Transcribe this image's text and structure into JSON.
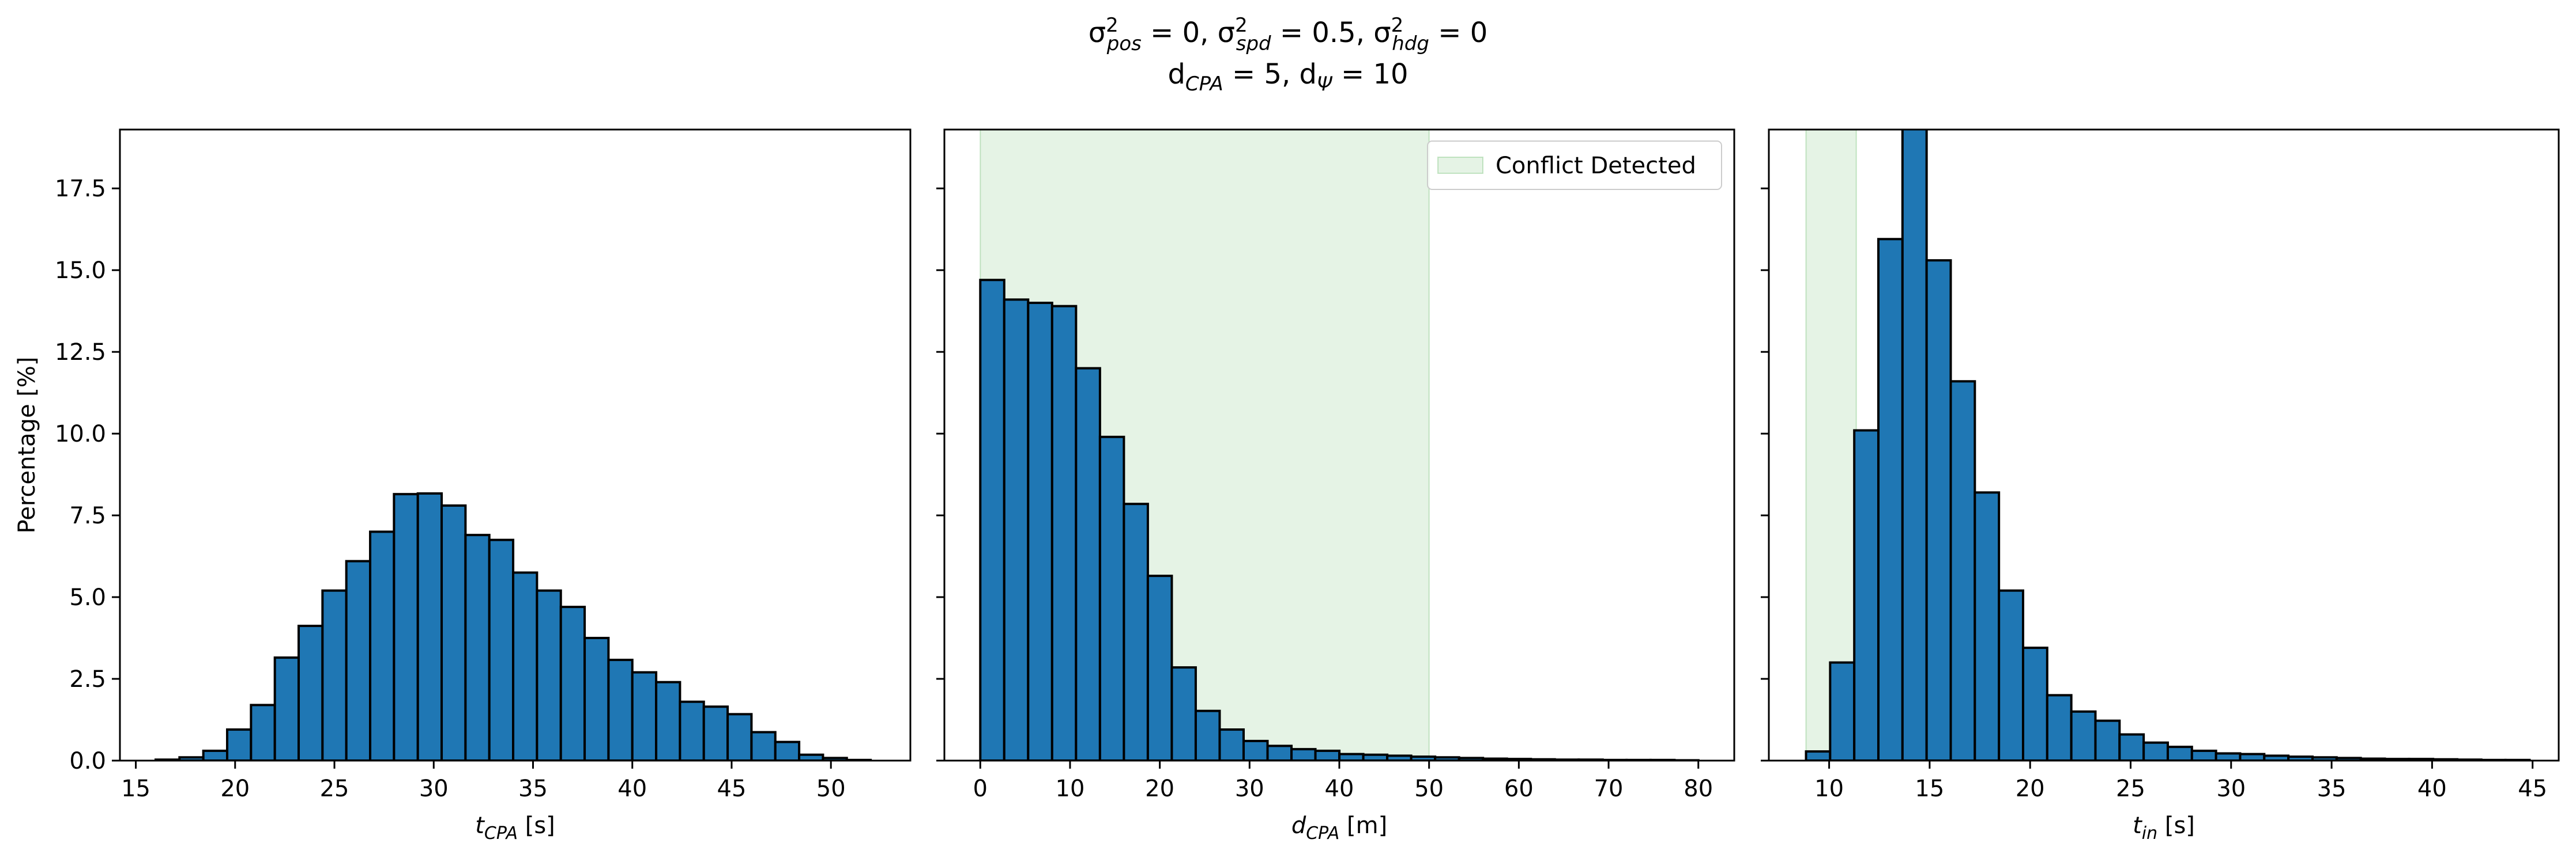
{
  "suptitle": {
    "line1": {
      "parts": [
        {
          "t": "σ"
        },
        {
          "sup": "2",
          "sub": "pos"
        },
        {
          "t": " = 0, σ"
        },
        {
          "sup": "2",
          "sub": "spd"
        },
        {
          "t": " = 0.5, σ"
        },
        {
          "sup": "2",
          "sub": "hdg"
        },
        {
          "t": " = 0"
        }
      ]
    },
    "line2": {
      "parts": [
        {
          "t": "d"
        },
        {
          "sub": "CPA"
        },
        {
          "t": " = 5, d"
        },
        {
          "sub": "Ψ"
        },
        {
          "t": " = 10"
        }
      ]
    }
  },
  "colors": {
    "bar": "#1f77b4",
    "edge": "#000000",
    "shade": "#2ca02c"
  },
  "chart_data": [
    {
      "type": "bar",
      "name": "tcpa",
      "ylabel": "Percentage [%]",
      "xlabel": {
        "main": "t",
        "sub": "CPA",
        "unit": " [s]"
      },
      "xlim": [
        14.2,
        54.0
      ],
      "ylim": [
        0,
        19.3
      ],
      "xticks": [
        15,
        20,
        25,
        30,
        35,
        40,
        45,
        50
      ],
      "yticks": [
        0,
        2.5,
        5,
        7.5,
        10,
        12.5,
        15,
        17.5
      ],
      "ytick_labels": [
        "0.0",
        "2.5",
        "5.0",
        "7.5",
        "10.0",
        "12.5",
        "15.0",
        "17.5"
      ],
      "show_ytick_labels": true,
      "bin_start": 16.0,
      "bin_width": 1.2,
      "values": [
        0.03,
        0.1,
        0.3,
        0.95,
        1.7,
        3.15,
        4.12,
        5.2,
        6.1,
        7.0,
        8.15,
        8.17,
        7.8,
        6.9,
        6.75,
        5.75,
        5.2,
        4.7,
        3.75,
        3.08,
        2.7,
        2.4,
        1.8,
        1.65,
        1.42,
        0.87,
        0.57,
        0.18,
        0.08,
        0.02
      ],
      "shade": null,
      "legend": null
    },
    {
      "type": "bar",
      "name": "dcpa",
      "ylabel": "",
      "xlabel": {
        "main": "d",
        "sub": "CPA",
        "unit": " [m]"
      },
      "xlim": [
        -4.0,
        84.0
      ],
      "ylim": [
        0,
        19.3
      ],
      "xticks": [
        0,
        10,
        20,
        30,
        40,
        50,
        60,
        70,
        80
      ],
      "yticks": [
        0,
        2.5,
        5,
        7.5,
        10,
        12.5,
        15,
        17.5
      ],
      "show_ytick_labels": false,
      "bin_start": 0.0,
      "bin_width": 2.667,
      "values": [
        14.7,
        14.1,
        14.0,
        13.9,
        12.0,
        9.9,
        7.85,
        5.65,
        2.85,
        1.52,
        0.95,
        0.6,
        0.45,
        0.35,
        0.3,
        0.2,
        0.18,
        0.15,
        0.12,
        0.1,
        0.08,
        0.06,
        0.05,
        0.04,
        0.03,
        0.03,
        0.02,
        0.02,
        0.02,
        0.01
      ],
      "shade": [
        0,
        50
      ],
      "legend": {
        "label": "Conflict Detected",
        "position": "top-right"
      }
    },
    {
      "type": "bar",
      "name": "tin",
      "ylabel": "",
      "xlabel": {
        "main": "t",
        "sub": "in",
        "unit": " [s]"
      },
      "xlim": [
        7.0,
        46.3
      ],
      "ylim": [
        0,
        19.3
      ],
      "xticks": [
        10,
        15,
        20,
        25,
        30,
        35,
        40,
        45
      ],
      "yticks": [
        0,
        2.5,
        5,
        7.5,
        10,
        12.5,
        15,
        17.5
      ],
      "show_ytick_labels": false,
      "bin_start": 8.85,
      "bin_width": 1.2,
      "values": [
        0.28,
        3.0,
        10.1,
        15.95,
        21.5,
        15.3,
        11.6,
        8.2,
        5.2,
        3.45,
        2.0,
        1.5,
        1.22,
        0.8,
        0.55,
        0.42,
        0.3,
        0.22,
        0.2,
        0.15,
        0.12,
        0.1,
        0.08,
        0.06,
        0.05,
        0.05,
        0.04,
        0.03,
        0.02,
        0.02
      ],
      "shade": [
        8.85,
        11.35
      ],
      "legend": null
    }
  ]
}
